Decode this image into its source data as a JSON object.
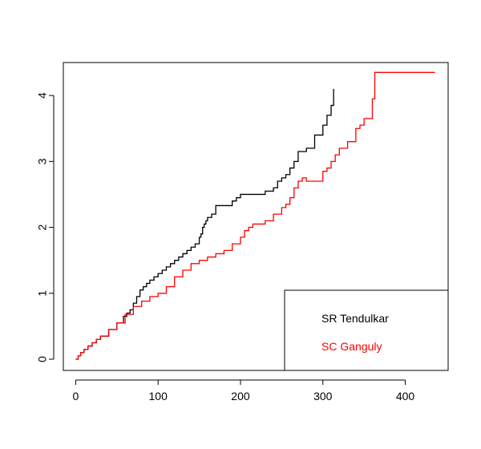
{
  "chart_data": {
    "type": "line",
    "title": "",
    "xlabel": "",
    "ylabel": "",
    "xlim": [
      -15,
      452
    ],
    "ylim": [
      -0.17,
      4.5
    ],
    "x_ticks": [
      0,
      100,
      200,
      300,
      400
    ],
    "y_ticks": [
      0,
      1,
      2,
      3,
      4
    ],
    "grid": false,
    "legend_position": "bottom-right",
    "series": [
      {
        "name": "SR Tendulkar",
        "color": "#000000",
        "step": true,
        "x": [
          0,
          3,
          6,
          10,
          15,
          20,
          25,
          30,
          40,
          50,
          58,
          62,
          66,
          70,
          74,
          78,
          82,
          86,
          90,
          95,
          100,
          105,
          110,
          115,
          120,
          125,
          130,
          135,
          140,
          145,
          150,
          152,
          154,
          156,
          158,
          160,
          165,
          170,
          180,
          190,
          195,
          200,
          210,
          220,
          230,
          240,
          245,
          250,
          255,
          260,
          265,
          270,
          280,
          290,
          300,
          305,
          310,
          313
        ],
        "y": [
          0,
          0.05,
          0.1,
          0.15,
          0.2,
          0.25,
          0.3,
          0.35,
          0.45,
          0.55,
          0.65,
          0.7,
          0.75,
          0.85,
          0.95,
          1.05,
          1.1,
          1.15,
          1.2,
          1.25,
          1.3,
          1.35,
          1.4,
          1.45,
          1.5,
          1.55,
          1.6,
          1.65,
          1.7,
          1.75,
          1.85,
          1.9,
          2.0,
          2.05,
          2.1,
          2.15,
          2.2,
          2.33,
          2.33,
          2.4,
          2.45,
          2.5,
          2.5,
          2.5,
          2.55,
          2.6,
          2.7,
          2.75,
          2.8,
          2.9,
          3.0,
          3.15,
          3.2,
          3.4,
          3.55,
          3.7,
          3.85,
          4.1
        ]
      },
      {
        "name": "SC Ganguly",
        "color": "#ff0000",
        "step": true,
        "x": [
          0,
          3,
          6,
          10,
          15,
          20,
          25,
          30,
          40,
          50,
          60,
          70,
          80,
          90,
          100,
          110,
          120,
          130,
          140,
          150,
          160,
          170,
          180,
          190,
          200,
          205,
          210,
          215,
          220,
          230,
          240,
          250,
          255,
          260,
          265,
          270,
          275,
          280,
          290,
          300,
          305,
          310,
          315,
          320,
          330,
          340,
          345,
          350,
          360,
          363,
          367,
          436
        ],
        "y": [
          0,
          0.05,
          0.1,
          0.15,
          0.2,
          0.25,
          0.3,
          0.35,
          0.45,
          0.55,
          0.68,
          0.8,
          0.88,
          0.95,
          1.0,
          1.1,
          1.25,
          1.35,
          1.45,
          1.5,
          1.55,
          1.6,
          1.65,
          1.75,
          1.85,
          1.95,
          2.0,
          2.05,
          2.05,
          2.1,
          2.2,
          2.3,
          2.35,
          2.45,
          2.6,
          2.7,
          2.75,
          2.7,
          2.7,
          2.85,
          2.9,
          3.0,
          3.1,
          3.2,
          3.3,
          3.5,
          3.55,
          3.65,
          3.95,
          4.35,
          4.35,
          4.35
        ]
      }
    ]
  }
}
